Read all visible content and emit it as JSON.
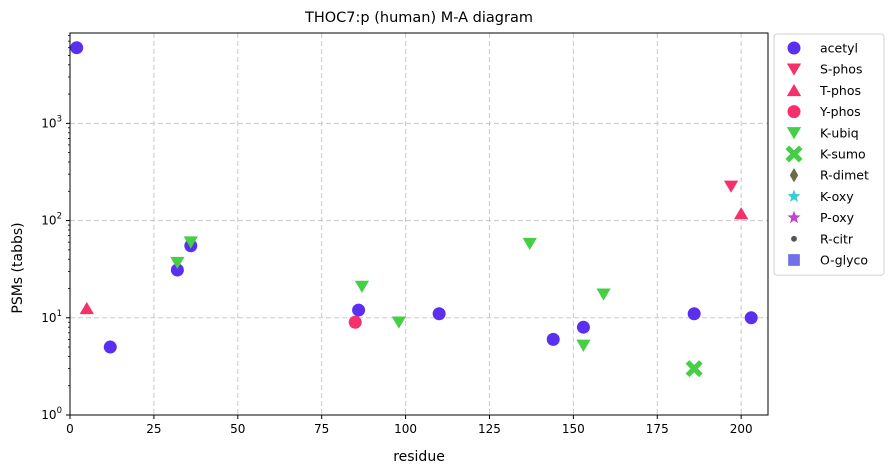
{
  "chart_data": {
    "type": "scatter",
    "title": "THOC7:p (human) M-A diagram",
    "xlabel": "residue",
    "ylabel": "PSMs (tabbs)",
    "xlim": [
      0,
      208
    ],
    "ylim": [
      1,
      8500
    ],
    "yscale": "log",
    "grid": true,
    "legend_position": "outside-right",
    "x_ticks": [
      0,
      25,
      50,
      75,
      100,
      125,
      150,
      175,
      200
    ],
    "y_ticks": [
      {
        "value": 1,
        "base": "10",
        "exp": "0"
      },
      {
        "value": 10,
        "base": "10",
        "exp": "1"
      },
      {
        "value": 100,
        "base": "10",
        "exp": "2"
      },
      {
        "value": 1000,
        "base": "10",
        "exp": "3"
      }
    ],
    "series": [
      {
        "name": "acetyl",
        "marker": "circle",
        "color": "#5b2ff0",
        "points": [
          [
            2,
            6000
          ],
          [
            12,
            5
          ],
          [
            32,
            31
          ],
          [
            36,
            55
          ],
          [
            86,
            12
          ],
          [
            110,
            11
          ],
          [
            144,
            6
          ],
          [
            153,
            8
          ],
          [
            186,
            11
          ],
          [
            203,
            10
          ]
        ]
      },
      {
        "name": "S-phos",
        "marker": "triangle-down",
        "color": "#f5306b",
        "points": [
          [
            197,
            225
          ]
        ]
      },
      {
        "name": "T-phos",
        "marker": "triangle-up",
        "color": "#f5306b",
        "points": [
          [
            5,
            12.5
          ],
          [
            200,
            118
          ]
        ]
      },
      {
        "name": "Y-phos",
        "marker": "circle",
        "color": "#f5306b",
        "points": [
          [
            85,
            9
          ]
        ]
      },
      {
        "name": "K-ubiq",
        "marker": "triangle-down",
        "color": "#44cf44",
        "points": [
          [
            32,
            37
          ],
          [
            36,
            60
          ],
          [
            87,
            21
          ],
          [
            98,
            9
          ],
          [
            137,
            58
          ],
          [
            153,
            5.2
          ],
          [
            159,
            17.5
          ]
        ]
      },
      {
        "name": "K-sumo",
        "marker": "x",
        "color": "#44cf44",
        "points": [
          [
            186,
            3
          ]
        ]
      },
      {
        "name": "R-dimet",
        "marker": "diamond",
        "color": "#6b6b48",
        "points": []
      },
      {
        "name": "K-oxy",
        "marker": "star",
        "color": "#3ccbd8",
        "points": []
      },
      {
        "name": "P-oxy",
        "marker": "star",
        "color": "#c043cc",
        "points": []
      },
      {
        "name": "R-citr",
        "marker": "dot",
        "color": "#555555",
        "points": []
      },
      {
        "name": "O-glyco",
        "marker": "square",
        "color": "#7070e8",
        "points": []
      }
    ]
  }
}
